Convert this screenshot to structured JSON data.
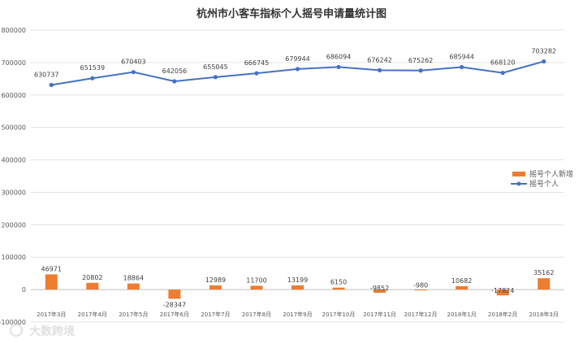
{
  "chart_data": {
    "type": "bar",
    "title": "杭州市小客车指标个人摇号申请量统计图",
    "categories": [
      "2017年3月",
      "2017年4月",
      "2017年5月",
      "2017年6月",
      "2017年7月",
      "2017年8月",
      "2017年9月",
      "2017年10月",
      "2017年11月",
      "2017年12月",
      "2018年1月",
      "2018年2月",
      "2018年3月"
    ],
    "ylim": [
      -100000,
      800000
    ],
    "yticks": [
      -100000,
      0,
      100000,
      200000,
      300000,
      400000,
      500000,
      600000,
      700000,
      800000
    ],
    "ytick_labels": [
      "-100000",
      "0",
      "100000",
      "200000",
      "300000",
      "400000",
      "500000",
      "600000",
      "700000",
      "800000"
    ],
    "grid": true,
    "legend_position": "right",
    "series": [
      {
        "name": "摇号个人新增",
        "type": "bar",
        "color": "#ed7d31",
        "values": [
          46971,
          20802,
          18864,
          -28347,
          12989,
          11700,
          13199,
          6150,
          -9852,
          -980,
          10682,
          -17824,
          35162
        ],
        "labels": [
          "46971",
          "20802",
          "18864",
          "-28347",
          "12989",
          "11700",
          "13199",
          "6150",
          "-9852",
          "-980",
          "10682",
          "-17824",
          "35162"
        ]
      },
      {
        "name": "摇号个人",
        "type": "line",
        "color": "#4472c4",
        "values": [
          630737,
          651539,
          670403,
          642056,
          655045,
          666745,
          679944,
          686094,
          676242,
          675262,
          685944,
          668120,
          703282
        ],
        "labels": [
          "630737",
          "651539",
          "670403",
          "642056",
          "655045",
          "666745",
          "679944",
          "686094",
          "676242",
          "675262",
          "685944",
          "668120",
          "703282"
        ]
      }
    ]
  },
  "watermark": "大数跨境"
}
